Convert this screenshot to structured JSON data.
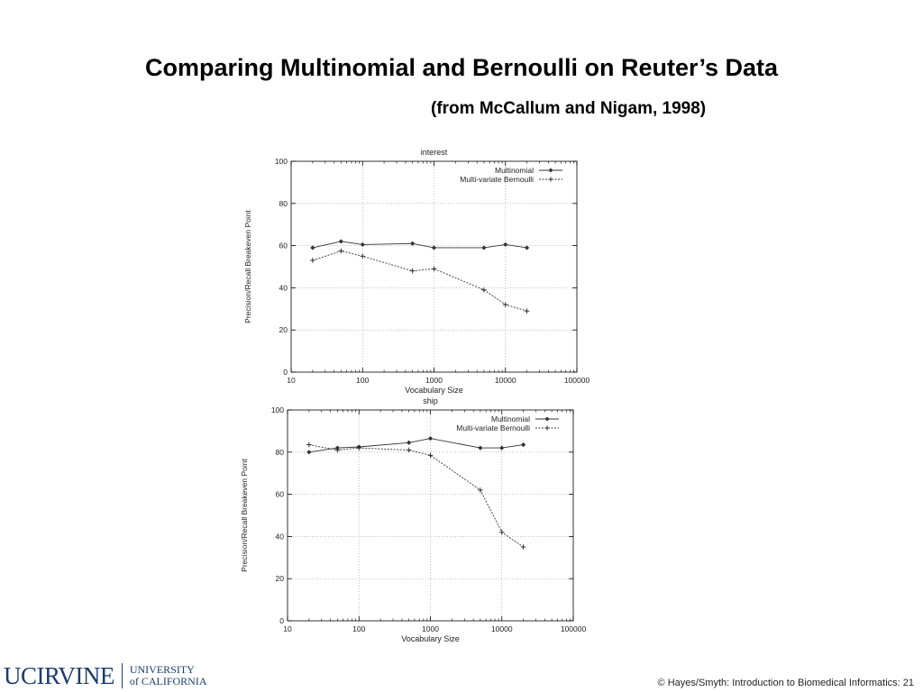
{
  "slide": {
    "title": "Comparing Multinomial and Bernoulli on Reuter’s Data",
    "subtitle": "(from McCallum and Nigam, 1998)",
    "copyright": "© Hayes/Smyth: Introduction to Biomedical Informatics: 21"
  },
  "logo": {
    "main": "UCIRVINE",
    "line1": "UNIVERSITY",
    "line2": "of CALIFORNIA"
  },
  "chart_data": [
    {
      "type": "line",
      "title": "interest",
      "xlabel": "Vocabulary Size",
      "ylabel": "Precision/Recall Breakeven Point",
      "xscale": "log",
      "xlim": [
        10,
        100000
      ],
      "ylim": [
        0,
        100
      ],
      "xticks": [
        10,
        100,
        1000,
        10000,
        100000
      ],
      "yticks": [
        0,
        20,
        40,
        60,
        80,
        100
      ],
      "legend": "top-right",
      "series": [
        {
          "name": "Multinomial",
          "style": "solid",
          "marker": "diamond",
          "x": [
            20,
            50,
            100,
            500,
            1000,
            5000,
            10000,
            20000
          ],
          "y": [
            59,
            62,
            60.5,
            61,
            59,
            59,
            60.5,
            59
          ]
        },
        {
          "name": "Multi-variate Bernoulli",
          "style": "dashed",
          "marker": "plus",
          "x": [
            20,
            50,
            100,
            500,
            1000,
            5000,
            10000,
            20000
          ],
          "y": [
            53,
            57.5,
            55,
            48,
            49,
            39,
            32,
            29
          ]
        }
      ]
    },
    {
      "type": "line",
      "title": "ship",
      "xlabel": "Vocabulary Size",
      "ylabel": "Precision/Recall Breakeven Point",
      "xscale": "log",
      "xlim": [
        10,
        100000
      ],
      "ylim": [
        0,
        100
      ],
      "xticks": [
        10,
        100,
        1000,
        10000,
        100000
      ],
      "yticks": [
        0,
        20,
        40,
        60,
        80,
        100
      ],
      "legend": "top-right",
      "series": [
        {
          "name": "Multinomial",
          "style": "solid",
          "marker": "diamond",
          "x": [
            20,
            50,
            100,
            500,
            1000,
            5000,
            10000,
            20000
          ],
          "y": [
            80,
            82,
            82.5,
            84.5,
            86.5,
            82,
            82,
            83.5
          ]
        },
        {
          "name": "Multi-variate Bernoulli",
          "style": "dashed",
          "marker": "plus",
          "x": [
            20,
            50,
            100,
            500,
            1000,
            5000,
            10000,
            20000
          ],
          "y": [
            83.5,
            81,
            82,
            81,
            78.5,
            62,
            42,
            35
          ]
        }
      ]
    }
  ]
}
